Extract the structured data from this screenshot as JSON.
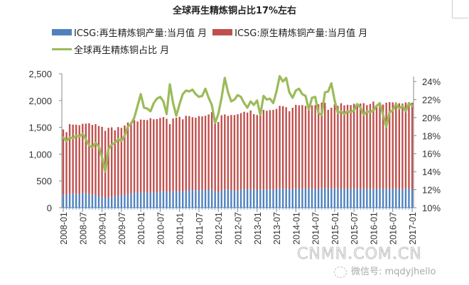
{
  "chart_data": {
    "type": "bar",
    "title": "全球再生精炼铜占比17%左右",
    "subtype": "stacked bar + line (dual axis)",
    "xlabel": "",
    "ylabel": "",
    "y2label": "",
    "ylim": [
      0,
      2500
    ],
    "y2lim": [
      0.1,
      0.25
    ],
    "yticks": [
      "0",
      "500",
      "1,000",
      "1,500",
      "2,000",
      "2,500"
    ],
    "y2ticks": [
      "10%",
      "12%",
      "14%",
      "16%",
      "18%",
      "20%",
      "22%",
      "24%"
    ],
    "xticks": [
      "2008-01",
      "2008-07",
      "2009-01",
      "2009-07",
      "2010-01",
      "2010-07",
      "2011-01",
      "2011-07",
      "2012-01",
      "2012-07",
      "2013-01",
      "2013-07",
      "2014-01",
      "2014-07",
      "2015-01",
      "2015-07",
      "2016-01",
      "2016-07",
      "2017-01"
    ],
    "grid": false,
    "legend_position": "top",
    "legend": [
      {
        "name": "ICSG:再生精炼铜产量:当月值 月",
        "color": "#4f81bd",
        "kind": "bar"
      },
      {
        "name": "ICSG:原生精炼铜产量:当月值 月",
        "color": "#c0504d",
        "kind": "bar"
      },
      {
        "name": "全球再生精炼铜占比 月",
        "color": "#9bbb59",
        "kind": "line"
      }
    ],
    "x_start": "2008-01",
    "x_end": "2017-01",
    "series": [
      {
        "name": "ICSG:再生精炼铜产量:当月值 月",
        "axis": "left",
        "values": [
          250,
          230,
          260,
          270,
          260,
          250,
          275,
          270,
          255,
          245,
          240,
          225,
          200,
          185,
          190,
          200,
          215,
          225,
          230,
          245,
          250,
          260,
          275,
          290,
          285,
          270,
          295,
          290,
          280,
          285,
          305,
          310,
          300,
          270,
          315,
          310,
          295,
          300,
          315,
          330,
          330,
          320,
          330,
          325,
          325,
          330,
          345,
          300,
          290,
          325,
          340,
          335,
          330,
          320,
          315,
          345,
          350,
          335,
          345,
          345,
          330,
          340,
          345,
          340,
          340,
          335,
          345,
          360,
          355,
          355,
          340,
          345,
          360,
          350,
          355,
          360,
          355,
          350,
          345,
          350,
          360,
          360,
          365,
          355,
          360,
          360,
          350,
          350,
          350,
          355,
          360,
          355,
          345,
          350,
          355,
          345,
          360,
          350,
          355,
          345,
          360,
          350,
          345,
          355,
          350,
          345,
          355,
          350,
          350
        ]
      },
      {
        "name": "ICSG:原生精炼铜产量:当月值 月",
        "axis": "left",
        "values": [
          1210,
          1180,
          1300,
          1280,
          1290,
          1290,
          1290,
          1300,
          1320,
          1300,
          1320,
          1300,
          1310,
          1250,
          1300,
          1300,
          1230,
          1280,
          1260,
          1290,
          1340,
          1340,
          1360,
          1320,
          1360,
          1370,
          1340,
          1380,
          1370,
          1370,
          1370,
          1380,
          1360,
          1290,
          1350,
          1370,
          1400,
          1350,
          1400,
          1380,
          1360,
          1360,
          1380,
          1380,
          1390,
          1410,
          1440,
          1370,
          1310,
          1400,
          1400,
          1380,
          1400,
          1410,
          1430,
          1420,
          1440,
          1440,
          1470,
          1400,
          1400,
          1460,
          1480,
          1470,
          1480,
          1490,
          1500,
          1540,
          1540,
          1520,
          1460,
          1520,
          1560,
          1560,
          1560,
          1540,
          1550,
          1560,
          1570,
          1580,
          1600,
          1600,
          1460,
          1510,
          1570,
          1540,
          1600,
          1560,
          1570,
          1560,
          1580,
          1590,
          1600,
          1600,
          1560,
          1590,
          1620,
          1540,
          1600,
          1580,
          1600,
          1620,
          1620,
          1610,
          1600,
          1600,
          1610,
          1620,
          1610
        ]
      },
      {
        "name": "全球再生精炼铜占比 月",
        "axis": "right",
        "unit": "%",
        "values": [
          17.8,
          17.4,
          17.8,
          17.7,
          18.0,
          17.9,
          18.2,
          17.6,
          16.9,
          16.7,
          17.2,
          16.8,
          15.6,
          14.0,
          16.5,
          17.0,
          17.2,
          17.6,
          17.4,
          18.0,
          19.0,
          19.3,
          20.0,
          21.3,
          22.6,
          21.1,
          21.0,
          20.7,
          21.6,
          22.1,
          22.3,
          21.8,
          20.4,
          23.7,
          21.6,
          20.2,
          21.5,
          22.6,
          23.0,
          22.9,
          23.1,
          22.6,
          22.3,
          22.4,
          23.2,
          22.2,
          21.4,
          19.4,
          20.4,
          22.2,
          24.4,
          22.8,
          21.8,
          22.0,
          22.5,
          22.3,
          21.6,
          21.1,
          21.8,
          21.4,
          21.9,
          20.3,
          22.4,
          22.0,
          22.1,
          21.6,
          22.9,
          24.6,
          24.0,
          24.4,
          22.8,
          22.2,
          23.0,
          23.2,
          22.6,
          22.4,
          20.9,
          22.2,
          22.3,
          20.5,
          20.3,
          22.8,
          22.9,
          23.8,
          21.9,
          20.5,
          20.7,
          20.4,
          20.7,
          20.6,
          20.8,
          21.5,
          21.1,
          20.3,
          20.7,
          20.6,
          20.8,
          21.3,
          21.6,
          20.3,
          19.0,
          20.6,
          20.8,
          21.5,
          21.0,
          21.3,
          20.7,
          21.6,
          21.3
        ]
      }
    ],
    "annotations": []
  },
  "header": {
    "title": "全球再生精炼铜占比17%左右"
  },
  "legend": {
    "items": [
      {
        "label": "ICSG:再生精炼铜产量:当月值 月",
        "color": "#4f81bd"
      },
      {
        "label": "ICSG:原生精炼铜产量:当月值 月",
        "color": "#c0504d"
      },
      {
        "label": "全球再生精炼铜占比 月",
        "color": "#9bbb59"
      }
    ]
  },
  "watermark": {
    "site": "CNMN.COM.CN",
    "wechat": "微信号: mqdyjhello"
  }
}
